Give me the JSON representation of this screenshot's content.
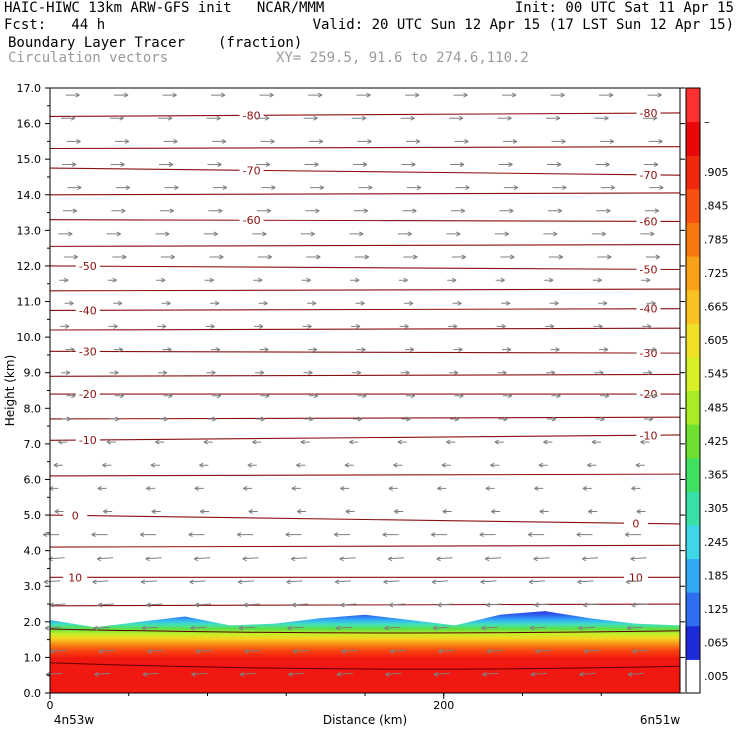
{
  "header": {
    "model_line": "HAIC-HIWC 13km ARW-GFS init   NCAR/MMM",
    "init_line": "Init: 00 UTC Sat 11 Apr 15",
    "fcst_line": "Fcst:   44 h",
    "valid_line": "Valid: 20 UTC Sun 12 Apr 15 (17 LST Sun 12 Apr 15)",
    "field_name": "Boundary Layer Tracer",
    "field_unit": "(fraction)",
    "vector_name": "Circulation vectors",
    "xy_line": "XY= 259.5, 91.6 to 274.6,110.2"
  },
  "chart_data": {
    "type": "heatmap",
    "xlabel": "Distance (km)",
    "ylabel": "Height (km)",
    "xlim": [
      0,
      320
    ],
    "ylim": [
      0,
      17
    ],
    "x_ticks": [
      {
        "value": 0,
        "label": "0"
      },
      {
        "value": 200,
        "label": "200"
      }
    ],
    "x_end_labels": {
      "left": "4n53w",
      "right": "6n51w"
    },
    "y_ticks": [
      "0.0",
      "1.0",
      "2.0",
      "3.0",
      "4.0",
      "5.0",
      "6.0",
      "7.0",
      "8.0",
      "9.0",
      "10.0",
      "11.0",
      "12.0",
      "13.0",
      "14.0",
      "15.0",
      "16.0",
      "17.0"
    ],
    "colorbar": {
      "labels": [
        ".005",
        ".065",
        ".125",
        ".185",
        ".245",
        ".305",
        ".365",
        ".425",
        ".485",
        ".545",
        ".605",
        ".665",
        ".725",
        ".785",
        ".845",
        ".905",
        "–"
      ],
      "colors": [
        "#ffffff",
        "#1c2ad8",
        "#2f6ef0",
        "#33a8f5",
        "#3fd6e8",
        "#38e0a8",
        "#40e060",
        "#70e030",
        "#a8ec28",
        "#d8f028",
        "#f0e028",
        "#f8c020",
        "#f8a018",
        "#f87810",
        "#f85010",
        "#f02810",
        "#e80808",
        "#ff3030"
      ]
    },
    "tracer_top_km": [
      2.05,
      1.85,
      2.0,
      2.15,
      1.9,
      1.95,
      2.1,
      2.2,
      2.05,
      1.9,
      2.2,
      2.3,
      2.1,
      1.95,
      1.9
    ],
    "temperature_contours": [
      {
        "label": "-80",
        "left_km": 16.2,
        "right_km": 16.3
      },
      {
        "label": "-70",
        "left_km": 14.75,
        "right_km": 14.55
      },
      {
        "label": "-60",
        "left_km": 13.3,
        "right_km": 13.25
      },
      {
        "label": "-50",
        "left_km": 12.0,
        "right_km": 11.9
      },
      {
        "label": "-40",
        "left_km": 10.75,
        "right_km": 10.8
      },
      {
        "label": "-30",
        "left_km": 9.6,
        "right_km": 9.55
      },
      {
        "label": "-20",
        "left_km": 8.4,
        "right_km": 8.4
      },
      {
        "label": "-10",
        "left_km": 7.1,
        "right_km": 7.25
      },
      {
        "label": "0",
        "left_km": 5.0,
        "right_km": 4.75
      },
      {
        "label": "10",
        "left_km": 3.25,
        "right_km": 3.25
      }
    ],
    "other_contour_km": [
      15.3,
      14.0,
      12.55,
      11.3,
      10.2,
      8.9,
      7.7,
      6.1,
      4.1,
      2.45
    ]
  }
}
